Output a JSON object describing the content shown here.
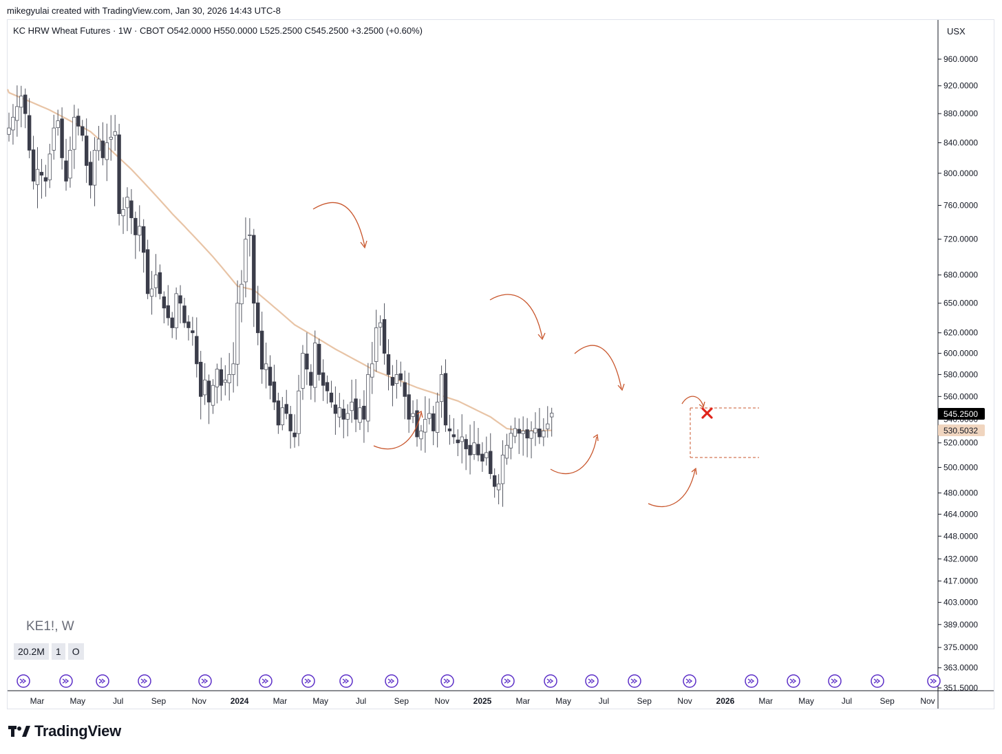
{
  "caption": "mikegyulai created with TradingView.com, Jan 30, 2026 14:43 UTC-8",
  "legend": "KC HRW Wheat Futures · 1W · CBOT   O542.0000   H550.0000   L525.2500   C545.2500   +3.2500 (+0.60%)",
  "unit": "USX",
  "symbol": "KE1!, W",
  "volume_chips": [
    "20.2M",
    "1",
    "O"
  ],
  "brand": "TradingView",
  "icons": [
    "tradingview-logo-icon",
    "event-arrow-icon",
    "red-x-icon"
  ],
  "colors": {
    "bull": "#ffffff",
    "bear": "#3b3d4a",
    "wick": "#50535e",
    "ma": "#e8c4a6",
    "annotation": "#c8552b",
    "cross": "#e0251b",
    "event": "#5b2ec7"
  },
  "chart_data": {
    "type": "candlestick",
    "title": "KC HRW Wheat Futures · 1W · CBOT",
    "price_scale": "log",
    "y_ticks": [
      "960.0000",
      "920.0000",
      "880.0000",
      "840.0000",
      "800.0000",
      "760.0000",
      "720.0000",
      "680.0000",
      "650.0000",
      "620.0000",
      "600.0000",
      "580.0000",
      "560.0000",
      "540.0000",
      "520.0000",
      "500.0000",
      "480.0000",
      "464.0000",
      "448.0000",
      "432.0000",
      "417.0000",
      "403.0000",
      "389.0000",
      "375.0000",
      "363.0000",
      "351.5000"
    ],
    "x_ticks": [
      "Mar",
      "May",
      "Jul",
      "Sep",
      "Nov",
      "2024",
      "Mar",
      "May",
      "Jul",
      "Sep",
      "Nov",
      "2025",
      "Mar",
      "May",
      "Jul",
      "Sep",
      "Nov",
      "2026",
      "Mar",
      "May",
      "Jul",
      "Sep",
      "Nov"
    ],
    "x_ticks_bold": [
      "2024",
      "2025",
      "2026"
    ],
    "last_price": "545.2500",
    "ma_value": "530.5032",
    "ohlc_last": {
      "open": 542.0,
      "high": 550.0,
      "low": 525.25,
      "close": 545.25,
      "change": "+3.2500 (+0.60%)"
    },
    "close_path": [
      [
        0,
        860
      ],
      [
        3,
        905
      ],
      [
        4,
        880
      ],
      [
        5,
        830
      ],
      [
        6,
        790
      ],
      [
        7,
        805
      ],
      [
        9,
        790
      ],
      [
        11,
        860
      ],
      [
        12,
        870
      ],
      [
        13,
        820
      ],
      [
        14,
        790
      ],
      [
        15,
        830
      ],
      [
        16,
        875
      ],
      [
        18,
        850
      ],
      [
        19,
        810
      ],
      [
        20,
        785
      ],
      [
        21,
        830
      ],
      [
        22,
        845
      ],
      [
        23,
        820
      ],
      [
        24,
        840
      ],
      [
        26,
        855
      ],
      [
        27,
        750
      ],
      [
        28,
        755
      ],
      [
        29,
        770
      ],
      [
        30,
        745
      ],
      [
        31,
        725
      ],
      [
        32,
        735
      ],
      [
        33,
        705
      ],
      [
        34,
        660
      ],
      [
        35,
        665
      ],
      [
        36,
        680
      ],
      [
        37,
        660
      ],
      [
        38,
        645
      ],
      [
        39,
        635
      ],
      [
        40,
        625
      ],
      [
        41,
        660
      ],
      [
        42,
        650
      ],
      [
        43,
        630
      ],
      [
        44,
        625
      ],
      [
        45,
        620
      ],
      [
        46,
        590
      ],
      [
        47,
        560
      ],
      [
        48,
        575
      ],
      [
        49,
        555
      ],
      [
        50,
        570
      ],
      [
        51,
        585
      ],
      [
        52,
        570
      ],
      [
        53,
        575
      ],
      [
        54,
        580
      ],
      [
        55,
        590
      ],
      [
        56,
        650
      ],
      [
        57,
        670
      ],
      [
        58,
        720
      ],
      [
        59,
        725
      ],
      [
        60,
        650
      ],
      [
        61,
        620
      ],
      [
        62,
        585
      ],
      [
        63,
        590
      ],
      [
        64,
        570
      ],
      [
        65,
        555
      ],
      [
        66,
        535
      ],
      [
        67,
        550
      ],
      [
        68,
        545
      ],
      [
        69,
        530
      ],
      [
        70,
        525
      ],
      [
        71,
        565
      ],
      [
        72,
        600
      ],
      [
        73,
        585
      ],
      [
        74,
        570
      ],
      [
        75,
        610
      ],
      [
        76,
        580
      ],
      [
        77,
        570
      ],
      [
        78,
        565
      ],
      [
        79,
        555
      ],
      [
        80,
        545
      ],
      [
        81,
        550
      ],
      [
        82,
        540
      ],
      [
        83,
        545
      ],
      [
        84,
        555
      ],
      [
        85,
        540
      ],
      [
        86,
        550
      ],
      [
        87,
        540
      ],
      [
        88,
        580
      ],
      [
        89,
        590
      ],
      [
        90,
        625
      ],
      [
        91,
        630
      ],
      [
        92,
        600
      ],
      [
        93,
        580
      ],
      [
        94,
        570
      ],
      [
        95,
        580
      ],
      [
        96,
        575
      ],
      [
        97,
        560
      ],
      [
        98,
        540
      ],
      [
        99,
        545
      ],
      [
        100,
        525
      ],
      [
        101,
        530
      ],
      [
        102,
        540
      ],
      [
        103,
        545
      ],
      [
        104,
        530
      ],
      [
        105,
        555
      ],
      [
        106,
        580
      ],
      [
        107,
        535
      ],
      [
        108,
        530
      ],
      [
        109,
        525
      ],
      [
        110,
        520
      ],
      [
        111,
        525
      ],
      [
        112,
        515
      ],
      [
        113,
        510
      ],
      [
        114,
        520
      ],
      [
        115,
        510
      ],
      [
        116,
        505
      ],
      [
        117,
        512
      ],
      [
        118,
        495
      ],
      [
        119,
        485
      ],
      [
        120,
        487
      ],
      [
        121,
        510
      ],
      [
        122,
        518
      ],
      [
        123,
        528
      ],
      [
        124,
        532
      ],
      [
        125,
        528
      ],
      [
        126,
        530
      ],
      [
        127,
        524
      ],
      [
        128,
        530
      ],
      [
        129,
        532
      ],
      [
        130,
        525
      ],
      [
        131,
        530
      ],
      [
        132,
        536
      ],
      [
        133,
        545
      ]
    ],
    "ma_path": [
      [
        0,
        910
      ],
      [
        10,
        885
      ],
      [
        20,
        855
      ],
      [
        30,
        805
      ],
      [
        40,
        750
      ],
      [
        50,
        700
      ],
      [
        56,
        668
      ],
      [
        60,
        664
      ],
      [
        70,
        628
      ],
      [
        80,
        604
      ],
      [
        90,
        583
      ],
      [
        100,
        568
      ],
      [
        110,
        556
      ],
      [
        118,
        542
      ],
      [
        122,
        532
      ],
      [
        126,
        530
      ],
      [
        133,
        530.5
      ]
    ]
  }
}
